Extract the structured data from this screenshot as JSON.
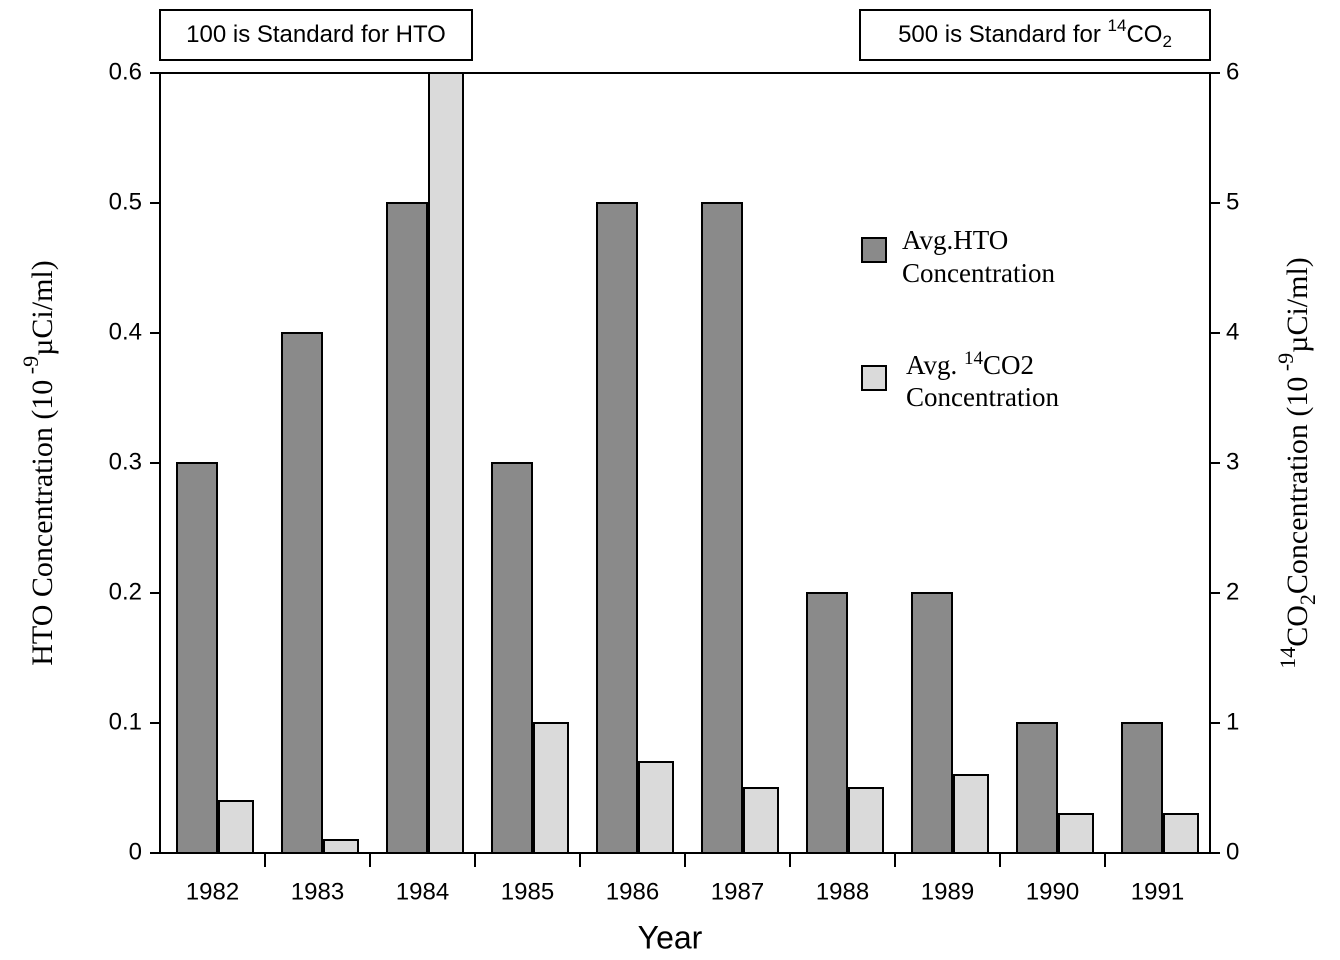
{
  "chart_data": {
    "type": "bar",
    "annotations": [
      [
        "100 is Standard for HTO"
      ],
      [
        "500 is Standard for ",
        "14",
        "CO",
        "2"
      ]
    ],
    "x_label": "Year",
    "y_label": [
      "HTO Concentration (10",
      " -9",
      "µCi/ml)"
    ],
    "y2_label": [
      "14",
      "CO",
      "2",
      "Concentration (10",
      " -9",
      "µCi/ml)"
    ],
    "categories": [
      "1982",
      "1983",
      "1984",
      "1985",
      "1986",
      "1987",
      "1988",
      "1989",
      "1990",
      "1991"
    ],
    "series": [
      {
        "name": [
          "Avg.HTO",
          "Concentration"
        ],
        "color": "#8a8a8a",
        "axis": "y",
        "values": [
          0.3,
          0.4,
          0.5,
          0.3,
          0.5,
          0.5,
          0.2,
          0.2,
          0.1,
          0.1
        ]
      },
      {
        "name": [
          "Avg. ",
          "14",
          "CO2",
          "Concentration"
        ],
        "color": "#dadada",
        "axis": "y2",
        "values": [
          0.4,
          0.1,
          6,
          1,
          0.7,
          0.5,
          0.5,
          0.6,
          0.3,
          0.3
        ]
      }
    ],
    "ylim": [
      0,
      0.6
    ],
    "yticks": [
      0,
      0.1,
      0.2,
      0.3,
      0.4,
      0.5,
      0.6
    ],
    "y2lim": [
      0,
      6
    ],
    "y2ticks": [
      0,
      1,
      2,
      3,
      4,
      5,
      6
    ]
  }
}
